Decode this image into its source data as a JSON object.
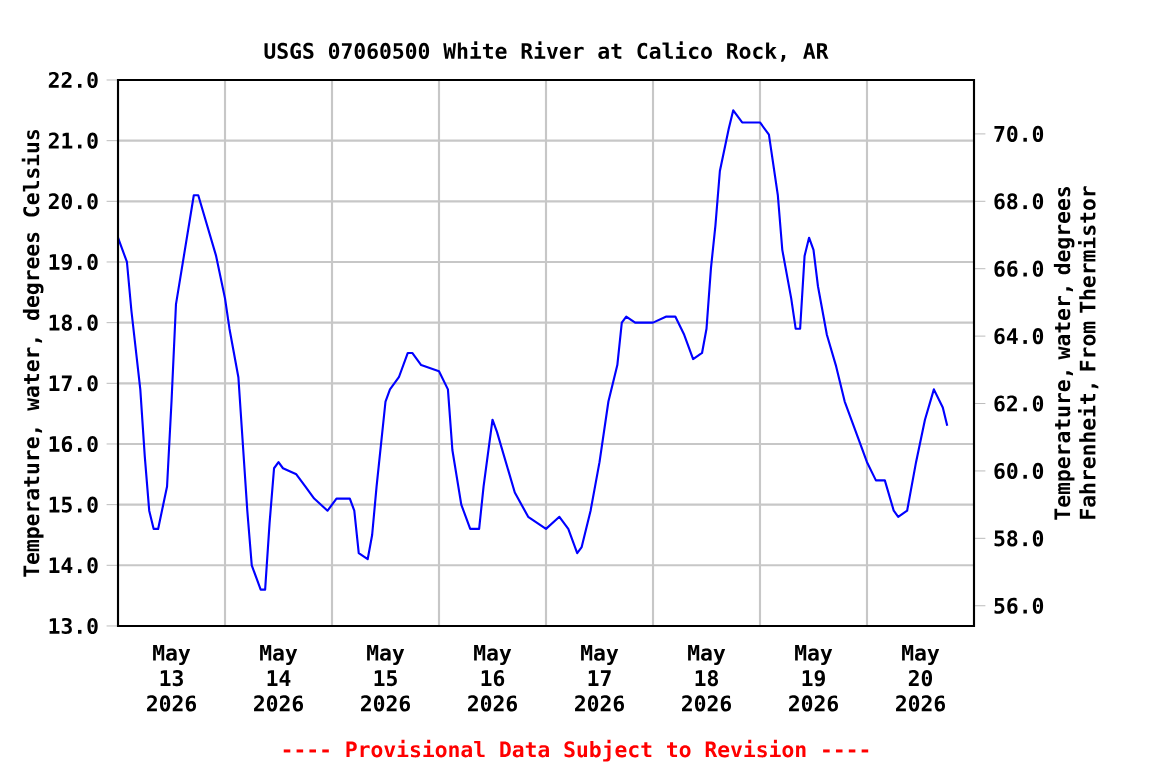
{
  "chart_data": {
    "type": "line",
    "title": "USGS 07060500 White River at Calico Rock, AR",
    "ylabel": "Temperature, water, degrees Celsius",
    "y2label": "Temperature, water, degrees Fahrenheit, From Thermistor",
    "annotations": [
      "---- Provisional Data Subject to Revision ----"
    ],
    "color": "#0000ff",
    "x": [
      "2026-05-13T00:00",
      "2026-05-13T02:00",
      "2026-05-13T03:00",
      "2026-05-13T05:00",
      "2026-05-13T06:00",
      "2026-05-13T07:00",
      "2026-05-13T08:00",
      "2026-05-13T09:00",
      "2026-05-13T11:00",
      "2026-05-13T12:00",
      "2026-05-13T13:00",
      "2026-05-13T15:00",
      "2026-05-13T17:00",
      "2026-05-13T18:00",
      "2026-05-13T20:00",
      "2026-05-13T22:00",
      "2026-05-14T00:00",
      "2026-05-14T01:00",
      "2026-05-14T03:00",
      "2026-05-14T04:00",
      "2026-05-14T05:00",
      "2026-05-14T06:00",
      "2026-05-14T08:00",
      "2026-05-14T09:00",
      "2026-05-14T10:00",
      "2026-05-14T11:00",
      "2026-05-14T12:00",
      "2026-05-14T13:00",
      "2026-05-14T16:00",
      "2026-05-14T18:00",
      "2026-05-14T20:00",
      "2026-05-14T23:00",
      "2026-05-15T01:00",
      "2026-05-15T04:00",
      "2026-05-15T05:00",
      "2026-05-15T06:00",
      "2026-05-15T08:00",
      "2026-05-15T09:00",
      "2026-05-15T10:00",
      "2026-05-15T12:00",
      "2026-05-15T13:00",
      "2026-05-15T15:00",
      "2026-05-15T17:00",
      "2026-05-15T18:00",
      "2026-05-15T20:00",
      "2026-05-16T00:00",
      "2026-05-16T02:00",
      "2026-05-16T03:00",
      "2026-05-16T05:00",
      "2026-05-16T07:00",
      "2026-05-16T09:00",
      "2026-05-16T10:00",
      "2026-05-16T12:00",
      "2026-05-16T13:00",
      "2026-05-16T15:00",
      "2026-05-16T17:00",
      "2026-05-16T20:00",
      "2026-05-16T22:00",
      "2026-05-17T00:00",
      "2026-05-17T03:00",
      "2026-05-17T05:00",
      "2026-05-17T07:00",
      "2026-05-17T08:00",
      "2026-05-17T10:00",
      "2026-05-17T12:00",
      "2026-05-17T14:00",
      "2026-05-17T16:00",
      "2026-05-17T17:00",
      "2026-05-17T18:00",
      "2026-05-17T20:00",
      "2026-05-18T00:00",
      "2026-05-18T03:00",
      "2026-05-18T05:00",
      "2026-05-18T07:00",
      "2026-05-18T09:00",
      "2026-05-18T11:00",
      "2026-05-18T12:00",
      "2026-05-18T13:00",
      "2026-05-18T14:00",
      "2026-05-18T15:00",
      "2026-05-18T17:00",
      "2026-05-18T18:00",
      "2026-05-18T20:00",
      "2026-05-19T00:00",
      "2026-05-19T02:00",
      "2026-05-19T04:00",
      "2026-05-19T05:00",
      "2026-05-19T07:00",
      "2026-05-19T08:00",
      "2026-05-19T09:00",
      "2026-05-19T10:00",
      "2026-05-19T11:00",
      "2026-05-19T12:00",
      "2026-05-19T13:00",
      "2026-05-19T15:00",
      "2026-05-19T17:00",
      "2026-05-19T19:00",
      "2026-05-19T22:00",
      "2026-05-20T00:00",
      "2026-05-20T02:00",
      "2026-05-20T04:00",
      "2026-05-20T06:00",
      "2026-05-20T07:00",
      "2026-05-20T09:00",
      "2026-05-20T11:00",
      "2026-05-20T13:00",
      "2026-05-20T15:00",
      "2026-05-20T17:00",
      "2026-05-20T18:00"
    ],
    "values": [
      19.4,
      19.0,
      18.2,
      16.9,
      15.8,
      14.9,
      14.6,
      14.6,
      15.3,
      16.7,
      18.3,
      19.2,
      20.1,
      20.1,
      19.6,
      19.1,
      18.4,
      17.9,
      17.1,
      16.0,
      14.9,
      14.0,
      13.6,
      13.6,
      14.7,
      15.6,
      15.7,
      15.6,
      15.5,
      15.3,
      15.1,
      14.9,
      15.1,
      15.1,
      14.9,
      14.2,
      14.1,
      14.5,
      15.3,
      16.7,
      16.9,
      17.1,
      17.5,
      17.5,
      17.3,
      17.2,
      16.9,
      15.9,
      15.0,
      14.6,
      14.6,
      15.3,
      16.4,
      16.2,
      15.7,
      15.2,
      14.8,
      14.7,
      14.6,
      14.8,
      14.6,
      14.2,
      14.3,
      14.9,
      15.7,
      16.7,
      17.3,
      18.0,
      18.1,
      18.0,
      18.0,
      18.1,
      18.1,
      17.8,
      17.4,
      17.5,
      17.9,
      18.9,
      19.6,
      20.5,
      21.2,
      21.5,
      21.3,
      21.3,
      21.1,
      20.1,
      19.2,
      18.4,
      17.9,
      17.9,
      19.1,
      19.4,
      19.2,
      18.6,
      17.8,
      17.3,
      16.7,
      16.1,
      15.7,
      15.4,
      15.4,
      14.9,
      14.8,
      14.9,
      15.7,
      16.4,
      16.9,
      16.6,
      16.3
    ],
    "xlim": [
      "2026-05-13T00:00",
      "2026-05-21T00:00"
    ],
    "xticks": [
      {
        "value": "2026-05-13T12:00",
        "label": "May 13 2026"
      },
      {
        "value": "2026-05-14T12:00",
        "label": "May 14 2026"
      },
      {
        "value": "2026-05-15T12:00",
        "label": "May 15 2026"
      },
      {
        "value": "2026-05-16T12:00",
        "label": "May 16 2026"
      },
      {
        "value": "2026-05-17T12:00",
        "label": "May 17 2026"
      },
      {
        "value": "2026-05-18T12:00",
        "label": "May 18 2026"
      },
      {
        "value": "2026-05-19T12:00",
        "label": "May 19 2026"
      },
      {
        "value": "2026-05-20T12:00",
        "label": "May 20 2026"
      },
      {
        "value": "2026-05-14T00:00",
        "label": null
      },
      {
        "value": "2026-05-15T00:00",
        "label": null
      },
      {
        "value": "2026-05-16T00:00",
        "label": null
      },
      {
        "value": "2026-05-17T00:00",
        "label": null
      },
      {
        "value": "2026-05-18T00:00",
        "label": null
      },
      {
        "value": "2026-05-19T00:00",
        "label": null
      },
      {
        "value": "2026-05-20T00:00",
        "label": null
      }
    ],
    "ylim": [
      13.0,
      22.0
    ],
    "yticks": [
      {
        "value": 13,
        "label": "13.0"
      },
      {
        "value": 14,
        "label": "14.0"
      },
      {
        "value": 15,
        "label": "15.0"
      },
      {
        "value": 16,
        "label": "16.0"
      },
      {
        "value": 17,
        "label": "17.0"
      },
      {
        "value": 18,
        "label": "18.0"
      },
      {
        "value": 19,
        "label": "19.0"
      },
      {
        "value": 20,
        "label": "20.0"
      },
      {
        "value": 21,
        "label": "21.0"
      },
      {
        "value": 22,
        "label": "22.0"
      }
    ],
    "y2lim": [
      55.4,
      71.6
    ],
    "y2ticks": [
      {
        "value": 56,
        "label": "56.0"
      },
      {
        "value": 58,
        "label": "58.0"
      },
      {
        "value": 60,
        "label": "60.0"
      },
      {
        "value": 62,
        "label": "62.0"
      },
      {
        "value": 64,
        "label": "64.0"
      },
      {
        "value": 66,
        "label": "66.0"
      },
      {
        "value": 68,
        "label": "68.0"
      },
      {
        "value": 70,
        "label": "70.0"
      }
    ],
    "grid": true
  }
}
